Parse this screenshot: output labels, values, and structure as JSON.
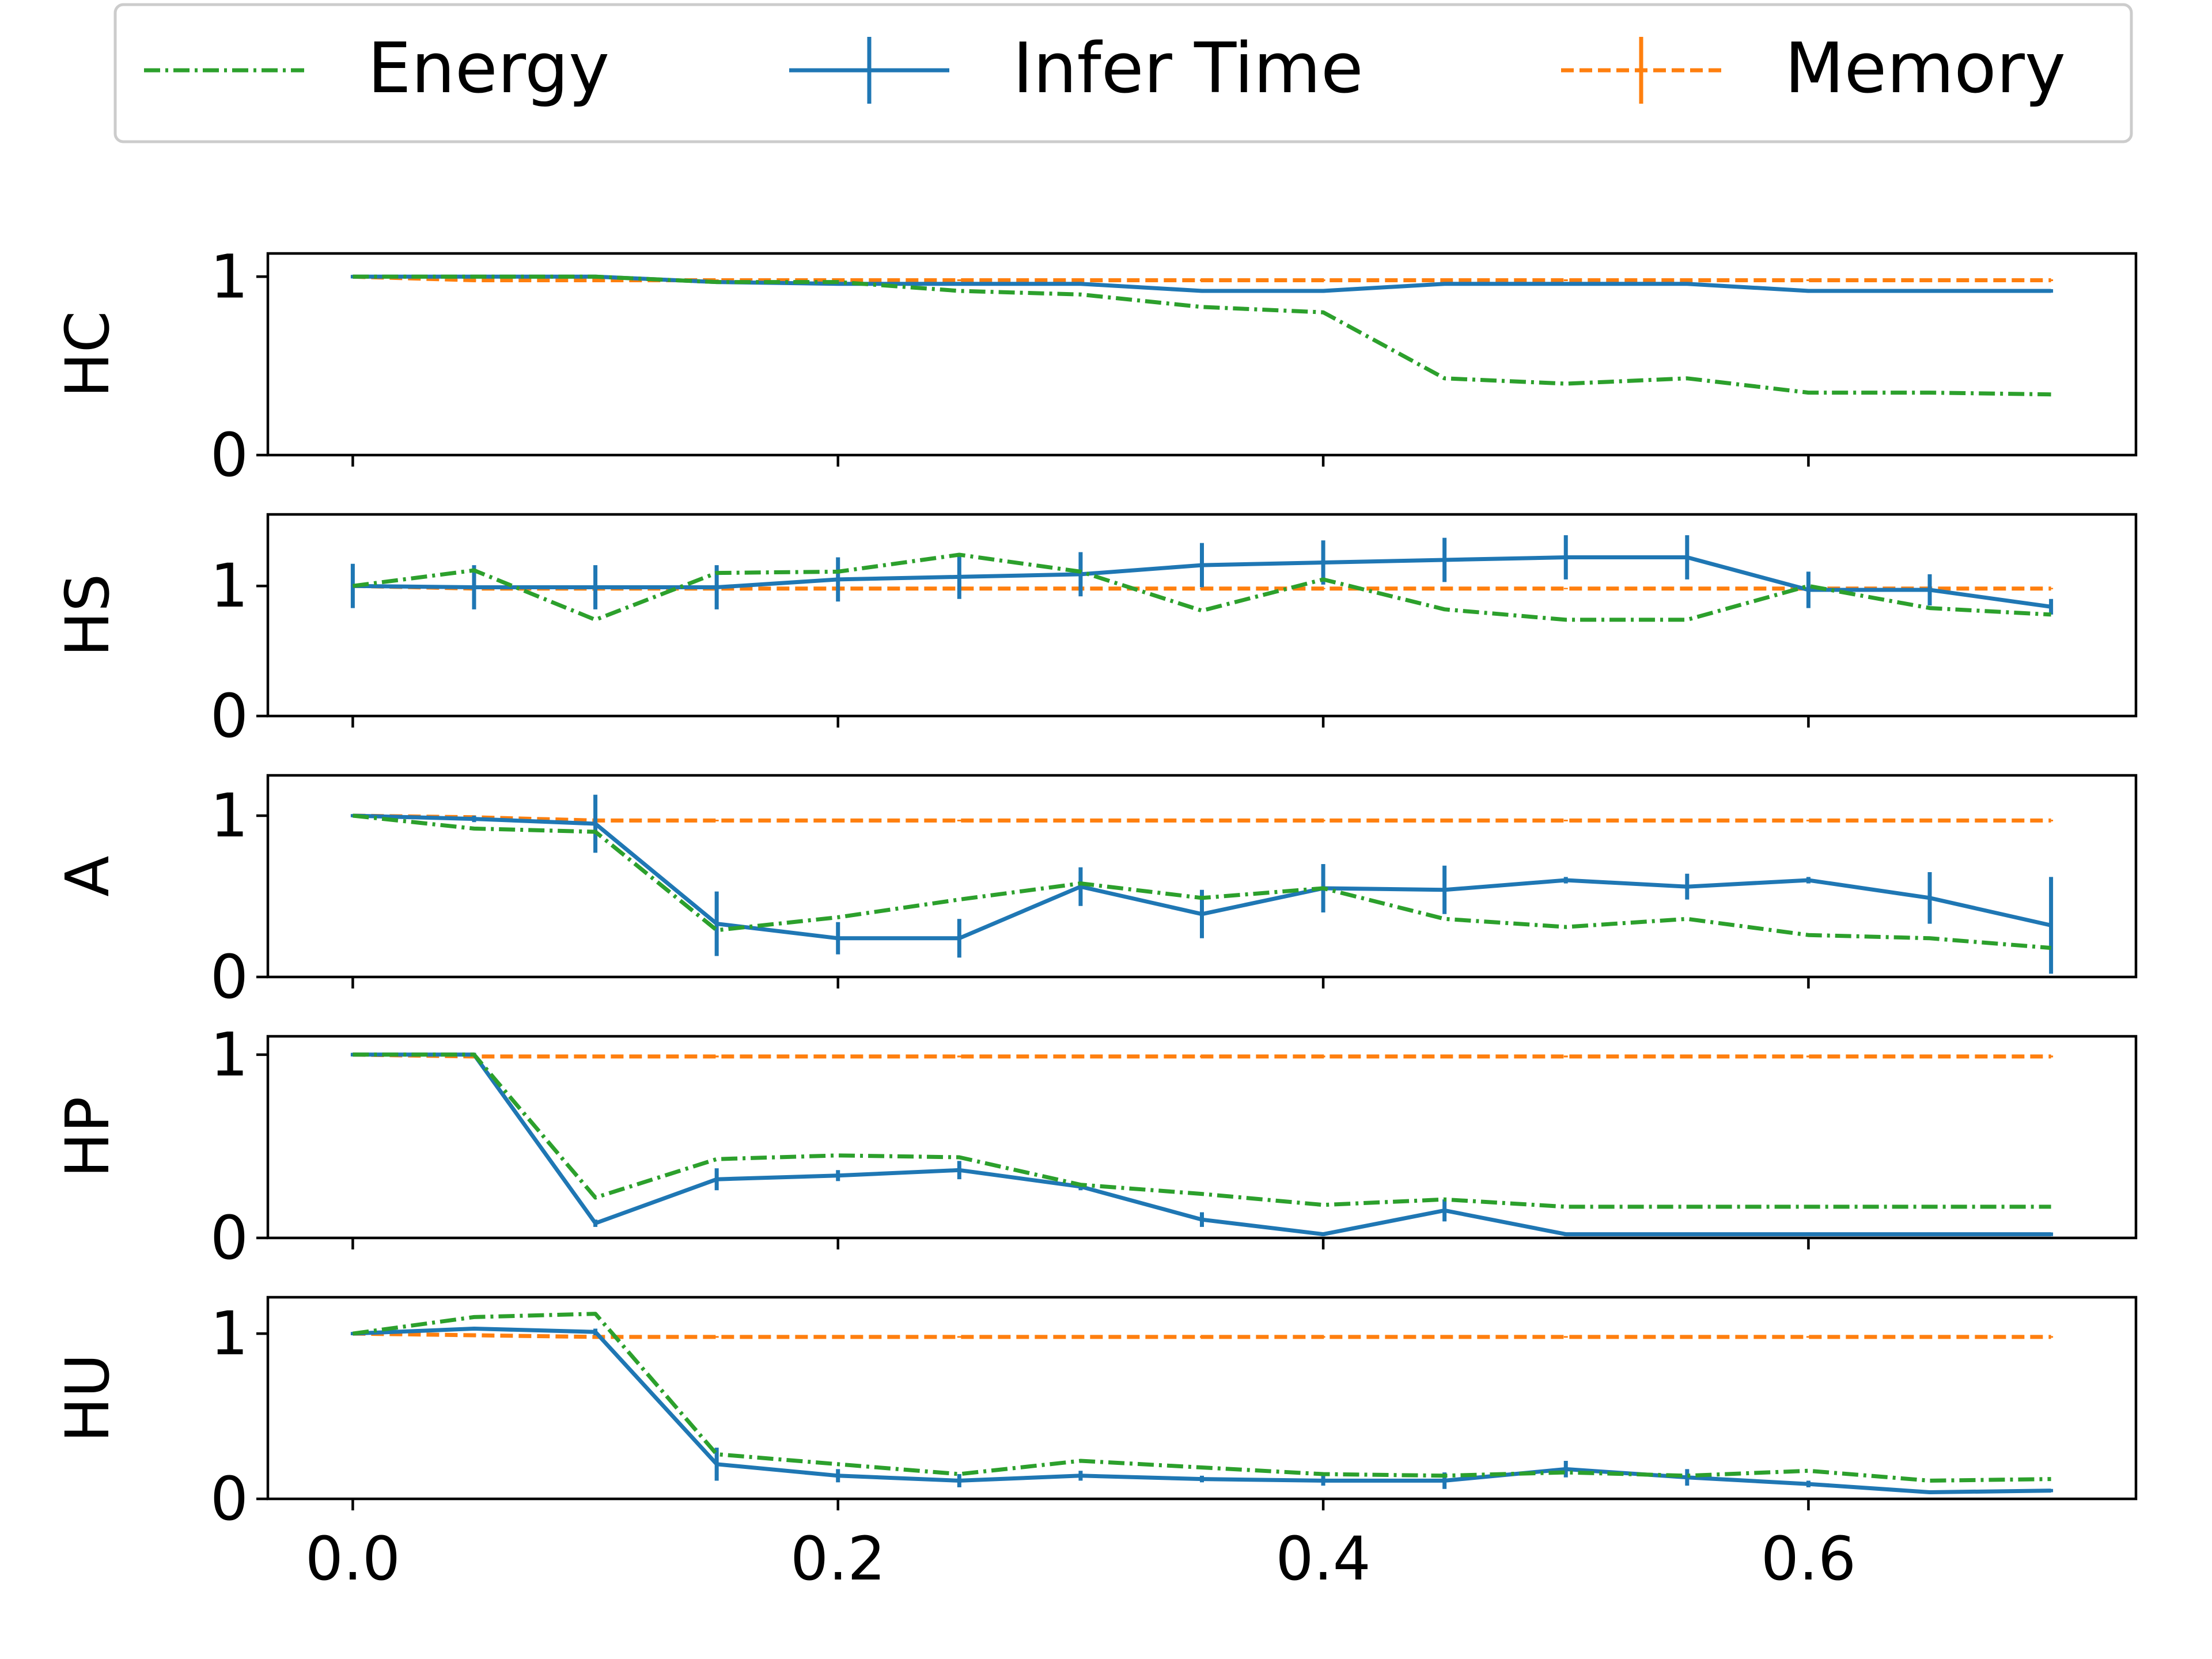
{
  "legend": {
    "placement": "top",
    "entries": [
      {
        "label": "Energy",
        "color": "#2ca02c",
        "style": "dashdot",
        "marker": "none"
      },
      {
        "label": "Infer Time",
        "color": "#1f77b4",
        "style": "solid",
        "marker": "errorbar"
      },
      {
        "label": "Memory",
        "color": "#ff7f0e",
        "style": "dashed",
        "marker": "errorbar"
      }
    ]
  },
  "chart_data": [
    {
      "type": "line",
      "ylabel": "HC",
      "ylim": [
        0,
        1.13
      ],
      "xlim": [
        -0.035,
        0.735
      ],
      "yticks": [
        0,
        1
      ],
      "xticks": [
        0.0,
        0.2,
        0.4,
        0.6
      ],
      "x": [
        0.0,
        0.05,
        0.1,
        0.15,
        0.2,
        0.25,
        0.3,
        0.35,
        0.4,
        0.45,
        0.5,
        0.55,
        0.6,
        0.65,
        0.7
      ],
      "series": [
        {
          "name": "Energy",
          "values": [
            1.0,
            1.0,
            1.0,
            0.97,
            0.97,
            0.92,
            0.9,
            0.83,
            0.8,
            0.43,
            0.4,
            0.43,
            0.35,
            0.35,
            0.34
          ],
          "errors": []
        },
        {
          "name": "Infer Time",
          "values": [
            1.0,
            1.0,
            1.0,
            0.97,
            0.96,
            0.96,
            0.96,
            0.92,
            0.92,
            0.96,
            0.96,
            0.96,
            0.92,
            0.92,
            0.92
          ],
          "errors": [
            0.01,
            0.01,
            0.01,
            0.01,
            0.01,
            0.01,
            0.01,
            0.01,
            0.01,
            0.01,
            0.01,
            0.01,
            0.01,
            0.01,
            0.01
          ]
        },
        {
          "name": "Memory",
          "values": [
            1.0,
            0.98,
            0.98,
            0.98,
            0.98,
            0.98,
            0.98,
            0.98,
            0.98,
            0.98,
            0.98,
            0.98,
            0.98,
            0.98,
            0.98
          ],
          "errors": [
            0.005,
            0.005,
            0.005,
            0.005,
            0.005,
            0.005,
            0.005,
            0.005,
            0.005,
            0.005,
            0.005,
            0.005,
            0.005,
            0.005,
            0.005
          ]
        }
      ]
    },
    {
      "type": "line",
      "ylabel": "HS",
      "ylim": [
        0,
        1.55
      ],
      "xlim": [
        -0.035,
        0.735
      ],
      "yticks": [
        0,
        1
      ],
      "xticks": [
        0.0,
        0.2,
        0.4,
        0.6
      ],
      "x": [
        0.0,
        0.05,
        0.1,
        0.15,
        0.2,
        0.25,
        0.3,
        0.35,
        0.4,
        0.45,
        0.5,
        0.55,
        0.6,
        0.65,
        0.7
      ],
      "series": [
        {
          "name": "Energy",
          "values": [
            1.0,
            1.12,
            0.74,
            1.1,
            1.11,
            1.24,
            1.11,
            0.81,
            1.05,
            0.82,
            0.74,
            0.74,
            1.0,
            0.83,
            0.78
          ],
          "errors": []
        },
        {
          "name": "Infer Time",
          "values": [
            1.0,
            0.99,
            0.99,
            0.99,
            1.05,
            1.07,
            1.09,
            1.16,
            1.18,
            1.2,
            1.22,
            1.22,
            0.97,
            0.97,
            0.84
          ],
          "errors": [
            0.17,
            0.17,
            0.17,
            0.17,
            0.17,
            0.17,
            0.17,
            0.17,
            0.17,
            0.17,
            0.17,
            0.17,
            0.14,
            0.12,
            0.06
          ]
        },
        {
          "name": "Memory",
          "values": [
            1.0,
            0.98,
            0.98,
            0.98,
            0.98,
            0.98,
            0.98,
            0.98,
            0.98,
            0.98,
            0.98,
            0.98,
            0.98,
            0.98,
            0.98
          ],
          "errors": [
            0.005,
            0.005,
            0.005,
            0.005,
            0.005,
            0.005,
            0.005,
            0.005,
            0.005,
            0.005,
            0.005,
            0.005,
            0.005,
            0.005,
            0.005
          ]
        }
      ]
    },
    {
      "type": "line",
      "ylabel": "A",
      "ylim": [
        0,
        1.25
      ],
      "xlim": [
        -0.035,
        0.735
      ],
      "yticks": [
        0,
        1
      ],
      "xticks": [
        0.0,
        0.2,
        0.4,
        0.6
      ],
      "x": [
        0.0,
        0.05,
        0.1,
        0.15,
        0.2,
        0.25,
        0.3,
        0.35,
        0.4,
        0.45,
        0.5,
        0.55,
        0.6,
        0.65,
        0.7
      ],
      "series": [
        {
          "name": "Energy",
          "values": [
            1.0,
            0.92,
            0.9,
            0.29,
            0.37,
            0.48,
            0.58,
            0.49,
            0.55,
            0.36,
            0.31,
            0.36,
            0.26,
            0.24,
            0.18
          ],
          "errors": []
        },
        {
          "name": "Infer Time",
          "values": [
            1.0,
            0.98,
            0.95,
            0.33,
            0.24,
            0.24,
            0.56,
            0.39,
            0.55,
            0.54,
            0.6,
            0.56,
            0.6,
            0.49,
            0.32
          ],
          "errors": [
            0.01,
            0.02,
            0.18,
            0.2,
            0.1,
            0.12,
            0.12,
            0.15,
            0.15,
            0.15,
            0.02,
            0.08,
            0.02,
            0.16,
            0.3
          ]
        },
        {
          "name": "Memory",
          "values": [
            1.0,
            0.99,
            0.97,
            0.97,
            0.97,
            0.97,
            0.97,
            0.97,
            0.97,
            0.97,
            0.97,
            0.97,
            0.97,
            0.97,
            0.97
          ],
          "errors": [
            0.005,
            0.005,
            0.005,
            0.005,
            0.005,
            0.005,
            0.005,
            0.005,
            0.005,
            0.005,
            0.005,
            0.005,
            0.005,
            0.005,
            0.005
          ]
        }
      ]
    },
    {
      "type": "line",
      "ylabel": "HP",
      "ylim": [
        0,
        1.1
      ],
      "xlim": [
        -0.035,
        0.735
      ],
      "yticks": [
        0,
        1
      ],
      "xticks": [
        0.0,
        0.2,
        0.4,
        0.6
      ],
      "x": [
        0.0,
        0.05,
        0.1,
        0.15,
        0.2,
        0.25,
        0.3,
        0.35,
        0.4,
        0.45,
        0.5,
        0.55,
        0.6,
        0.65,
        0.7
      ],
      "series": [
        {
          "name": "Energy",
          "values": [
            1.0,
            1.0,
            0.22,
            0.43,
            0.45,
            0.44,
            0.29,
            0.24,
            0.18,
            0.21,
            0.17,
            0.17,
            0.17,
            0.17,
            0.17
          ],
          "errors": []
        },
        {
          "name": "Infer Time",
          "values": [
            1.0,
            1.0,
            0.08,
            0.32,
            0.34,
            0.37,
            0.28,
            0.1,
            0.02,
            0.15,
            0.02,
            0.02,
            0.02,
            0.02,
            0.02
          ],
          "errors": [
            0.01,
            0.01,
            0.02,
            0.06,
            0.03,
            0.05,
            0.02,
            0.04,
            0.01,
            0.06,
            0.01,
            0.01,
            0.01,
            0.01,
            0.01
          ]
        },
        {
          "name": "Memory",
          "values": [
            1.0,
            0.99,
            0.99,
            0.99,
            0.99,
            0.99,
            0.99,
            0.99,
            0.99,
            0.99,
            0.99,
            0.99,
            0.99,
            0.99,
            0.99
          ],
          "errors": [
            0.005,
            0.005,
            0.005,
            0.005,
            0.005,
            0.005,
            0.005,
            0.005,
            0.005,
            0.005,
            0.005,
            0.005,
            0.005,
            0.005,
            0.005
          ]
        }
      ]
    },
    {
      "type": "line",
      "ylabel": "HU",
      "ylim": [
        0,
        1.22
      ],
      "xlim": [
        -0.035,
        0.735
      ],
      "yticks": [
        0,
        1
      ],
      "xticks": [
        0.0,
        0.2,
        0.4,
        0.6
      ],
      "xtick_labels": [
        "0.0",
        "0.2",
        "0.4",
        "0.6"
      ],
      "x": [
        0.0,
        0.05,
        0.1,
        0.15,
        0.2,
        0.25,
        0.3,
        0.35,
        0.4,
        0.45,
        0.5,
        0.55,
        0.6,
        0.65,
        0.7
      ],
      "series": [
        {
          "name": "Energy",
          "values": [
            1.0,
            1.1,
            1.12,
            0.27,
            0.21,
            0.15,
            0.23,
            0.19,
            0.15,
            0.14,
            0.16,
            0.14,
            0.17,
            0.11,
            0.12
          ],
          "errors": []
        },
        {
          "name": "Infer Time",
          "values": [
            1.0,
            1.03,
            1.01,
            0.21,
            0.14,
            0.11,
            0.14,
            0.12,
            0.11,
            0.11,
            0.18,
            0.13,
            0.09,
            0.04,
            0.05
          ],
          "errors": [
            0.01,
            0.01,
            0.02,
            0.1,
            0.04,
            0.04,
            0.03,
            0.02,
            0.03,
            0.05,
            0.05,
            0.05,
            0.02,
            0.01,
            0.01
          ]
        },
        {
          "name": "Memory",
          "values": [
            1.0,
            0.99,
            0.98,
            0.98,
            0.98,
            0.98,
            0.98,
            0.98,
            0.98,
            0.98,
            0.98,
            0.98,
            0.98,
            0.98,
            0.98
          ],
          "errors": [
            0.005,
            0.005,
            0.005,
            0.005,
            0.005,
            0.005,
            0.005,
            0.005,
            0.005,
            0.005,
            0.005,
            0.005,
            0.005,
            0.005,
            0.005
          ]
        }
      ]
    }
  ]
}
